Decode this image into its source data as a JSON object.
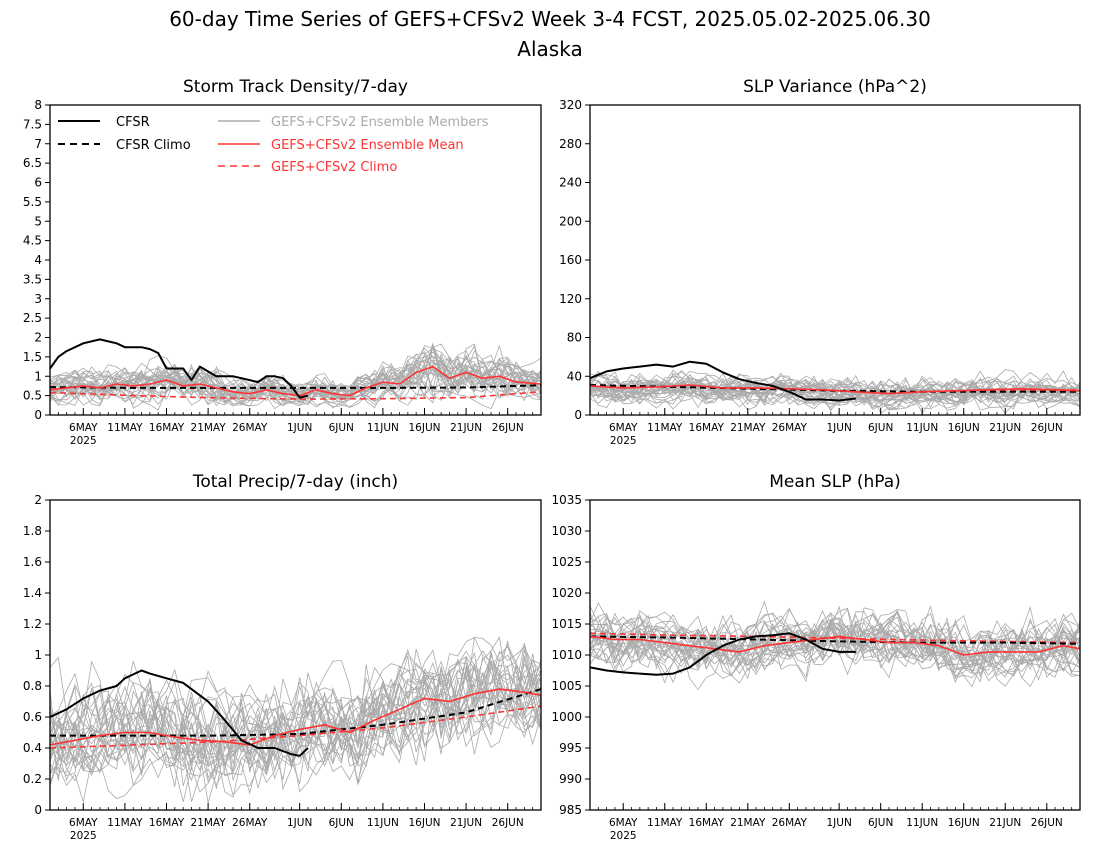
{
  "figure": {
    "title_line1": "60-day Time Series of GEFS+CFSv2 Week 3-4 FCST, 2025.05.02-2025.06.30",
    "title_line2": "Alaska"
  },
  "legend": {
    "cfsr": "CFSR",
    "cfsr_climo": "CFSR Climo",
    "members": "GEFS+CFSv2 Ensemble Members",
    "mean": "GEFS+CFSv2 Ensemble Mean",
    "climo": "GEFS+CFSv2 Climo"
  },
  "colors": {
    "cfsr": "#000000",
    "members": "#aaaaaa",
    "mean": "#ff3333",
    "climo": "#ff3333"
  },
  "x_axis": {
    "start_date": "2025-05-02",
    "end_date": "2025-06-30",
    "tick_labels": [
      "6MAY",
      "11MAY",
      "16MAY",
      "21MAY",
      "26MAY",
      "1JUN",
      "6JUN",
      "11JUN",
      "16JUN",
      "21JUN",
      "26JUN"
    ],
    "tick_dates": [
      "2025-05-06",
      "2025-05-11",
      "2025-05-16",
      "2025-05-21",
      "2025-05-26",
      "2025-06-01",
      "2025-06-06",
      "2025-06-11",
      "2025-06-16",
      "2025-06-21",
      "2025-06-26"
    ],
    "year_label": "2025"
  },
  "chart_data": [
    {
      "type": "line",
      "title": "Storm Track Density/7-day",
      "ylim": [
        0,
        8
      ],
      "yticks": [
        "0",
        "0.5",
        "1",
        "1.5",
        "2",
        "2.5",
        "3",
        "3.5",
        "4",
        "4.5",
        "5",
        "5.5",
        "6",
        "6.5",
        "7",
        "7.5",
        "8"
      ],
      "grid": false,
      "legend": "top-left",
      "series": [
        {
          "name": "CFSR",
          "style": "solid-black",
          "x": [
            "2025-05-02",
            "2025-05-03",
            "2025-05-04",
            "2025-05-06",
            "2025-05-08",
            "2025-05-09",
            "2025-05-10",
            "2025-05-11",
            "2025-05-12",
            "2025-05-13",
            "2025-05-14",
            "2025-05-15",
            "2025-05-16",
            "2025-05-17",
            "2025-05-18",
            "2025-05-19",
            "2025-05-20",
            "2025-05-22",
            "2025-05-24",
            "2025-05-25",
            "2025-05-27",
            "2025-05-28",
            "2025-05-29",
            "2025-05-30",
            "2025-05-31",
            "2025-06-01",
            "2025-06-02"
          ],
          "values": [
            1.2,
            1.5,
            1.65,
            1.85,
            1.95,
            1.9,
            1.85,
            1.75,
            1.75,
            1.75,
            1.7,
            1.6,
            1.2,
            1.2,
            1.2,
            0.9,
            1.25,
            1.0,
            1.0,
            0.95,
            0.85,
            1.0,
            1.0,
            0.95,
            0.75,
            0.45,
            0.5
          ]
        },
        {
          "name": "CFSR Climo",
          "style": "dashed-black",
          "x": [
            "2025-05-02",
            "2025-05-12",
            "2025-05-22",
            "2025-06-01",
            "2025-06-11",
            "2025-06-21",
            "2025-06-30"
          ],
          "values": [
            0.72,
            0.7,
            0.7,
            0.7,
            0.7,
            0.71,
            0.77
          ]
        },
        {
          "name": "GEFS+CFSv2 Ensemble Mean",
          "style": "solid-red",
          "x": [
            "2025-05-02",
            "2025-05-04",
            "2025-05-06",
            "2025-05-08",
            "2025-05-10",
            "2025-05-12",
            "2025-05-14",
            "2025-05-16",
            "2025-05-18",
            "2025-05-20",
            "2025-05-22",
            "2025-05-24",
            "2025-05-26",
            "2025-05-28",
            "2025-05-30",
            "2025-06-01",
            "2025-06-03",
            "2025-06-05",
            "2025-06-07",
            "2025-06-09",
            "2025-06-11",
            "2025-06-13",
            "2025-06-15",
            "2025-06-17",
            "2025-06-19",
            "2025-06-21",
            "2025-06-23",
            "2025-06-25",
            "2025-06-27",
            "2025-06-30"
          ],
          "values": [
            0.65,
            0.7,
            0.75,
            0.7,
            0.8,
            0.75,
            0.8,
            0.9,
            0.75,
            0.8,
            0.7,
            0.6,
            0.55,
            0.65,
            0.55,
            0.5,
            0.65,
            0.55,
            0.5,
            0.7,
            0.85,
            0.8,
            1.1,
            1.25,
            0.95,
            1.1,
            0.95,
            1.0,
            0.85,
            0.8
          ]
        },
        {
          "name": "GEFS+CFSv2 Climo",
          "style": "dashed-red",
          "x": [
            "2025-05-02",
            "2025-05-12",
            "2025-05-22",
            "2025-06-01",
            "2025-06-11",
            "2025-06-21",
            "2025-06-30"
          ],
          "values": [
            0.58,
            0.5,
            0.44,
            0.41,
            0.42,
            0.45,
            0.6
          ]
        }
      ]
    },
    {
      "type": "line",
      "title": "SLP Variance (hPa^2)",
      "ylim": [
        0,
        320
      ],
      "yticks": [
        "0",
        "40",
        "80",
        "120",
        "160",
        "200",
        "240",
        "280",
        "320"
      ],
      "grid": false,
      "series": [
        {
          "name": "CFSR",
          "style": "solid-black",
          "x": [
            "2025-05-02",
            "2025-05-04",
            "2025-05-06",
            "2025-05-08",
            "2025-05-10",
            "2025-05-12",
            "2025-05-14",
            "2025-05-16",
            "2025-05-18",
            "2025-05-20",
            "2025-05-22",
            "2025-05-24",
            "2025-05-26",
            "2025-05-28",
            "2025-05-30",
            "2025-06-01",
            "2025-06-03"
          ],
          "values": [
            38,
            45,
            48,
            50,
            52,
            50,
            55,
            53,
            44,
            37,
            33,
            30,
            24,
            16,
            16,
            15,
            17
          ]
        },
        {
          "name": "CFSR Climo",
          "style": "dashed-black",
          "x": [
            "2025-05-02",
            "2025-05-12",
            "2025-05-22",
            "2025-06-01",
            "2025-06-11",
            "2025-06-21",
            "2025-06-30"
          ],
          "values": [
            31,
            29,
            27,
            25,
            24,
            24,
            24
          ]
        },
        {
          "name": "GEFS+CFSv2 Ensemble Mean",
          "style": "solid-red",
          "x": [
            "2025-05-02",
            "2025-05-06",
            "2025-05-10",
            "2025-05-14",
            "2025-05-18",
            "2025-05-22",
            "2025-05-26",
            "2025-05-30",
            "2025-06-03",
            "2025-06-07",
            "2025-06-11",
            "2025-06-15",
            "2025-06-19",
            "2025-06-23",
            "2025-06-27",
            "2025-06-30"
          ],
          "values": [
            30,
            28,
            29,
            31,
            28,
            28,
            27,
            26,
            24,
            22,
            24,
            25,
            26,
            27,
            26,
            25
          ]
        },
        {
          "name": "GEFS+CFSv2 Climo",
          "style": "dashed-red",
          "x": [
            "2025-05-02",
            "2025-05-12",
            "2025-05-22",
            "2025-06-01",
            "2025-06-11",
            "2025-06-21",
            "2025-06-30"
          ],
          "values": [
            30,
            29,
            27,
            25,
            24,
            25,
            26
          ]
        }
      ]
    },
    {
      "type": "line",
      "title": "Total Precip/7-day (inch)",
      "ylim": [
        0,
        2
      ],
      "yticks": [
        "0",
        "0.2",
        "0.4",
        "0.6",
        "0.8",
        "1",
        "1.2",
        "1.4",
        "1.6",
        "1.8",
        "2"
      ],
      "grid": false,
      "series": [
        {
          "name": "CFSR",
          "style": "solid-black",
          "x": [
            "2025-05-02",
            "2025-05-04",
            "2025-05-06",
            "2025-05-08",
            "2025-05-10",
            "2025-05-11",
            "2025-05-13",
            "2025-05-14",
            "2025-05-16",
            "2025-05-18",
            "2025-05-19",
            "2025-05-21",
            "2025-05-23",
            "2025-05-25",
            "2025-05-27",
            "2025-05-29",
            "2025-05-31",
            "2025-06-01",
            "2025-06-02"
          ],
          "values": [
            0.6,
            0.65,
            0.72,
            0.77,
            0.8,
            0.85,
            0.9,
            0.88,
            0.85,
            0.82,
            0.78,
            0.7,
            0.58,
            0.45,
            0.4,
            0.4,
            0.36,
            0.35,
            0.4
          ]
        },
        {
          "name": "CFSR Climo",
          "style": "dashed-black",
          "x": [
            "2025-05-02",
            "2025-05-12",
            "2025-05-22",
            "2025-06-01",
            "2025-06-11",
            "2025-06-21",
            "2025-06-30"
          ],
          "values": [
            0.48,
            0.48,
            0.48,
            0.49,
            0.55,
            0.63,
            0.78
          ]
        },
        {
          "name": "GEFS+CFSv2 Ensemble Mean",
          "style": "solid-red",
          "x": [
            "2025-05-02",
            "2025-05-05",
            "2025-05-08",
            "2025-05-11",
            "2025-05-14",
            "2025-05-17",
            "2025-05-20",
            "2025-05-23",
            "2025-05-26",
            "2025-05-29",
            "2025-06-01",
            "2025-06-04",
            "2025-06-07",
            "2025-06-10",
            "2025-06-13",
            "2025-06-16",
            "2025-06-19",
            "2025-06-22",
            "2025-06-25",
            "2025-06-28",
            "2025-06-30"
          ],
          "values": [
            0.42,
            0.45,
            0.48,
            0.5,
            0.5,
            0.47,
            0.45,
            0.44,
            0.42,
            0.48,
            0.52,
            0.55,
            0.5,
            0.58,
            0.65,
            0.72,
            0.7,
            0.75,
            0.78,
            0.76,
            0.74
          ]
        },
        {
          "name": "GEFS+CFSv2 Climo",
          "style": "dashed-red",
          "x": [
            "2025-05-02",
            "2025-05-12",
            "2025-05-22",
            "2025-06-01",
            "2025-06-11",
            "2025-06-21",
            "2025-06-30"
          ],
          "values": [
            0.4,
            0.42,
            0.44,
            0.48,
            0.53,
            0.6,
            0.67
          ]
        }
      ]
    },
    {
      "type": "line",
      "title": "Mean SLP (hPa)",
      "ylim": [
        985,
        1035
      ],
      "yticks": [
        "985",
        "990",
        "995",
        "1000",
        "1005",
        "1010",
        "1015",
        "1020",
        "1025",
        "1030",
        "1035"
      ],
      "grid": false,
      "series": [
        {
          "name": "CFSR",
          "style": "solid-black",
          "x": [
            "2025-05-02",
            "2025-05-04",
            "2025-05-06",
            "2025-05-08",
            "2025-05-10",
            "2025-05-12",
            "2025-05-14",
            "2025-05-16",
            "2025-05-18",
            "2025-05-20",
            "2025-05-22",
            "2025-05-24",
            "2025-05-26",
            "2025-05-28",
            "2025-05-30",
            "2025-06-01",
            "2025-06-03"
          ],
          "values": [
            1008,
            1007.5,
            1007.2,
            1007,
            1006.8,
            1007,
            1008,
            1010,
            1011.5,
            1012.5,
            1013,
            1013.2,
            1013.5,
            1012.5,
            1011,
            1010.5,
            1010.5
          ]
        },
        {
          "name": "CFSR Climo",
          "style": "dashed-black",
          "x": [
            "2025-05-02",
            "2025-05-12",
            "2025-05-22",
            "2025-06-01",
            "2025-06-11",
            "2025-06-21",
            "2025-06-30"
          ],
          "values": [
            1013,
            1012.8,
            1012.5,
            1012.2,
            1012,
            1012,
            1011.8
          ]
        },
        {
          "name": "GEFS+CFSv2 Ensemble Mean",
          "style": "solid-red",
          "x": [
            "2025-05-02",
            "2025-05-05",
            "2025-05-08",
            "2025-05-11",
            "2025-05-14",
            "2025-05-17",
            "2025-05-20",
            "2025-05-23",
            "2025-05-26",
            "2025-05-29",
            "2025-06-01",
            "2025-06-04",
            "2025-06-07",
            "2025-06-10",
            "2025-06-13",
            "2025-06-16",
            "2025-06-19",
            "2025-06-22",
            "2025-06-25",
            "2025-06-28",
            "2025-06-30"
          ],
          "values": [
            1013,
            1012.5,
            1012.5,
            1012,
            1011.5,
            1011,
            1010.5,
            1011.5,
            1012,
            1012.5,
            1013,
            1012.5,
            1012,
            1012,
            1011.5,
            1010,
            1010.5,
            1010.5,
            1010.5,
            1011.5,
            1011
          ]
        },
        {
          "name": "GEFS+CFSv2 Climo",
          "style": "dashed-red",
          "x": [
            "2025-05-02",
            "2025-05-12",
            "2025-05-22",
            "2025-06-01",
            "2025-06-11",
            "2025-06-21",
            "2025-06-30"
          ],
          "values": [
            1013.5,
            1013.2,
            1013,
            1012.7,
            1012.4,
            1012.2,
            1012
          ]
        }
      ]
    }
  ]
}
